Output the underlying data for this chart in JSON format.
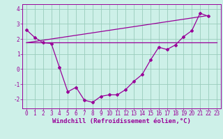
{
  "x": [
    0,
    1,
    2,
    3,
    4,
    5,
    6,
    7,
    8,
    9,
    10,
    11,
    12,
    13,
    14,
    15,
    16,
    17,
    18,
    19,
    20,
    21,
    22,
    23
  ],
  "windchill": [
    2.6,
    2.1,
    1.75,
    1.7,
    0.1,
    -1.5,
    -1.2,
    -2.05,
    -2.2,
    -1.8,
    -1.7,
    -1.7,
    -1.35,
    -0.8,
    -0.35,
    0.6,
    1.45,
    1.3,
    1.6,
    2.15,
    2.55,
    3.7,
    3.5,
    null
  ],
  "line1_x": [
    0,
    23
  ],
  "line1_y": [
    1.75,
    1.75
  ],
  "line2_x": [
    0,
    22
  ],
  "line2_y": [
    1.75,
    3.55
  ],
  "bg_color": "#cdf0e8",
  "line_color": "#990099",
  "grid_color": "#99ccbb",
  "xlabel": "Windchill (Refroidissement éolien,°C)",
  "ylabel": "",
  "ylim": [
    -2.6,
    4.3
  ],
  "xlim": [
    -0.5,
    23.5
  ],
  "xlabel_fontsize": 6.5,
  "tick_fontsize": 5.5,
  "line_width": 0.9,
  "marker": "D",
  "marker_size": 2.0
}
